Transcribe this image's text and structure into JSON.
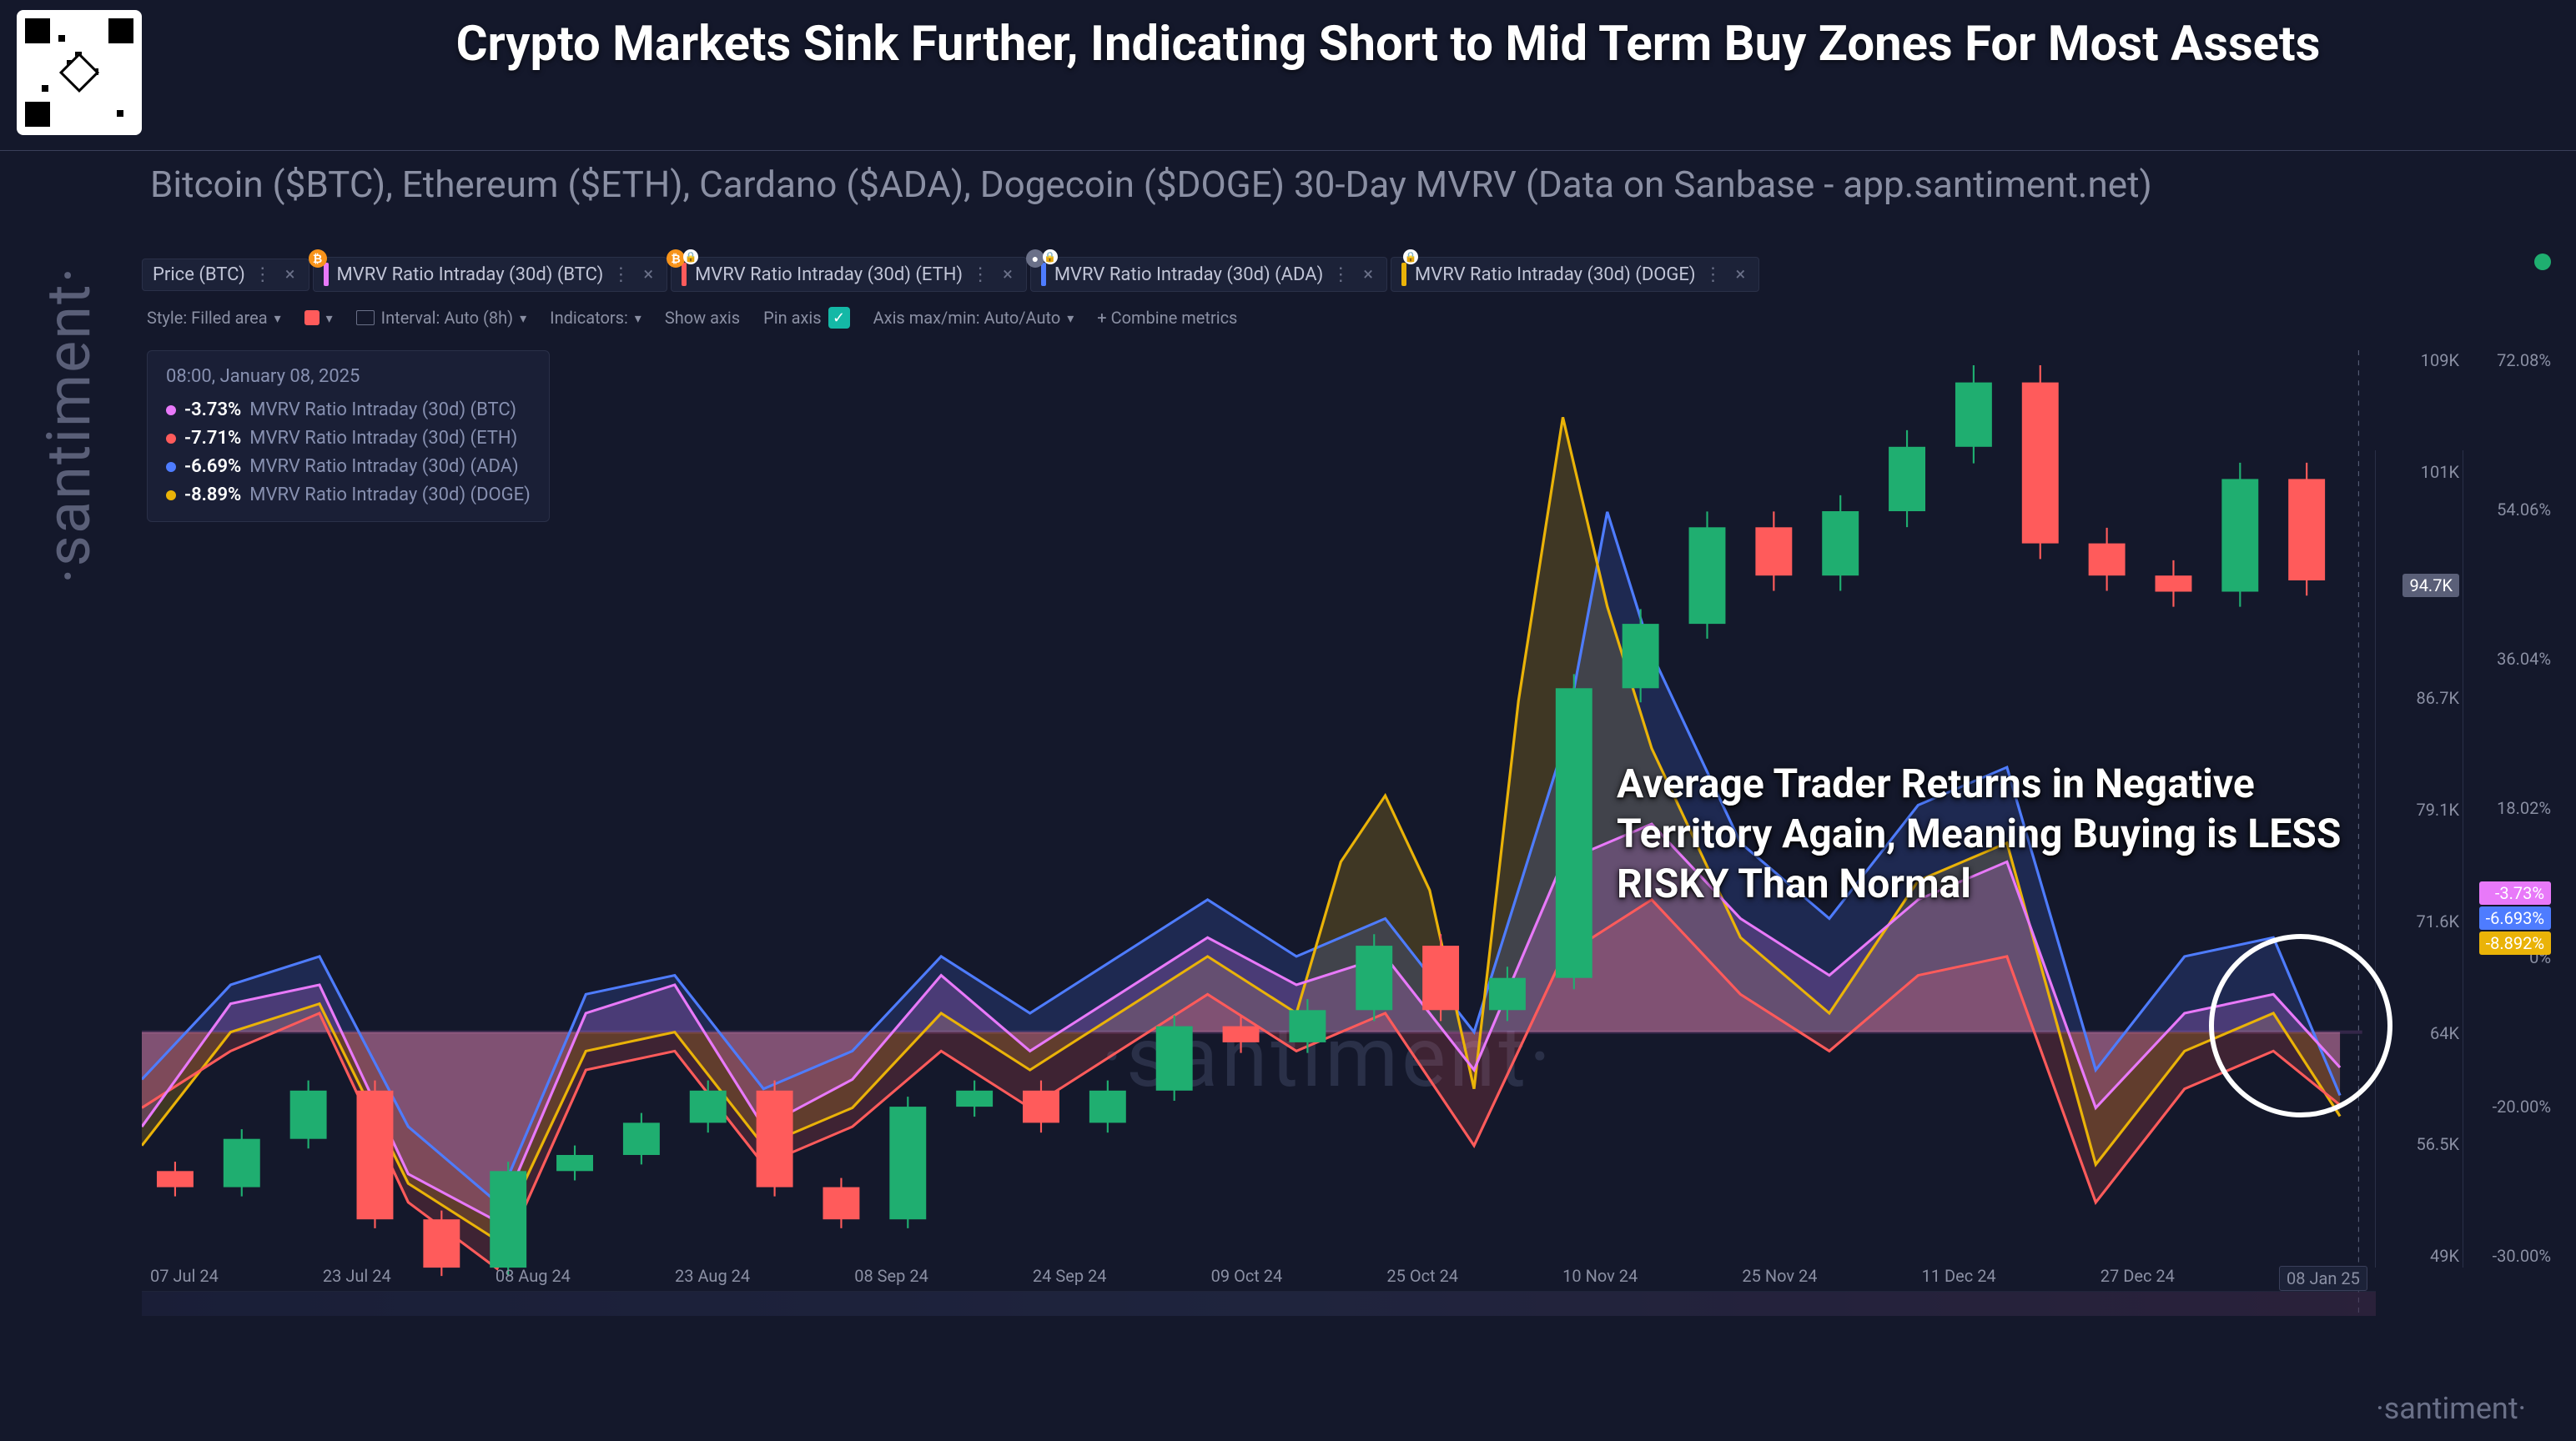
{
  "headline": "Crypto Markets Sink Further, Indicating Short to Mid Term Buy Zones For Most Assets",
  "subtitle": "Bitcoin ($BTC), Ethereum ($ETH), Cardano ($ADA), Dogecoin ($DOGE) 30-Day MVRV (Data on Sanbase - app.santiment.net)",
  "watermark": "·santiment·",
  "pills": [
    {
      "label": "Price (BTC)",
      "color": null,
      "badges": []
    },
    {
      "label": "MVRV Ratio Intraday (30d) (BTC)",
      "color": "#e879f9",
      "badges": [
        "btc"
      ]
    },
    {
      "label": "MVRV Ratio Intraday (30d) (ETH)",
      "color": "#ff5b5b",
      "badges": [
        "btc",
        "lock"
      ]
    },
    {
      "label": "MVRV Ratio Intraday (30d) (ADA)",
      "color": "#4e7cff",
      "badges": [
        "gray",
        "lock"
      ]
    },
    {
      "label": "MVRV Ratio Intraday (30d) (DOGE)",
      "color": "#eab308",
      "badges": [
        "lock"
      ]
    }
  ],
  "toolbar": {
    "style_label": "Style: Filled area",
    "interval_label": "Interval: Auto (8h)",
    "indicators_label": "Indicators:",
    "show_axis": "Show axis",
    "pin_axis": "Pin axis",
    "axis_minmax": "Axis max/min: Auto/Auto",
    "combine": "+   Combine metrics"
  },
  "tooltip": {
    "time": "08:00, January 08, 2025",
    "rows": [
      {
        "color": "#e879f9",
        "val": "-3.73%",
        "lbl": "MVRV Ratio Intraday (30d) (BTC)"
      },
      {
        "color": "#ff5b5b",
        "val": "-7.71%",
        "lbl": "MVRV Ratio Intraday (30d) (ETH)"
      },
      {
        "color": "#4e7cff",
        "val": "-6.69%",
        "lbl": "MVRV Ratio Intraday (30d) (ADA)"
      },
      {
        "color": "#eab308",
        "val": "-8.89%",
        "lbl": "MVRV Ratio Intraday (30d) (DOGE)"
      }
    ]
  },
  "annotation": "Average Trader Returns in Negative Territory Again, Meaning Buying is LESS RISKY Than Normal",
  "x_ticks": [
    "07 Jul 24",
    "23 Jul 24",
    "08 Aug 24",
    "23 Aug 24",
    "08 Sep 24",
    "24 Sep 24",
    "09 Oct 24",
    "25 Oct 24",
    "10 Nov 24",
    "25 Nov 24",
    "11 Dec 24",
    "27 Dec 24",
    "08 Jan 25"
  ],
  "y_left_ticks": [
    "109K",
    "101K",
    "94.7K",
    "86.7K",
    "79.1K",
    "71.6K",
    "64K",
    "56.5K",
    "49K"
  ],
  "y_left_highlight": "94.7K",
  "y_right_ticks": [
    "72.08%",
    "54.06%",
    "36.04%",
    "18.02%",
    "0%",
    "-20.00%",
    "-30.00%"
  ],
  "y_right_tags": [
    {
      "text": "-3.73%",
      "bg": "#e879f9"
    },
    {
      "text": "-6.693%",
      "bg": "#4e7cff"
    },
    {
      "text": "-8.892%",
      "bg": "#eab308"
    }
  ],
  "colors": {
    "bg": "#14182b",
    "panel": "#1c2238",
    "grid": "#2a3048",
    "btc": "#e879f9",
    "eth": "#ff5b5b",
    "ada": "#4e7cff",
    "doge": "#eab308",
    "candle_up": "#1fae70",
    "candle_dn": "#ff5b5b"
  },
  "chart": {
    "type": "multiline+candlestick",
    "x_range": [
      0,
      100
    ],
    "price_range": [
      49000,
      109000
    ],
    "pct_range": [
      -30,
      72.08
    ],
    "price": [
      [
        0,
        58000
      ],
      [
        3,
        57000
      ],
      [
        6,
        60000
      ],
      [
        9,
        63000
      ],
      [
        12,
        55000
      ],
      [
        15,
        52000
      ],
      [
        18,
        58000
      ],
      [
        21,
        59000
      ],
      [
        24,
        61000
      ],
      [
        27,
        63000
      ],
      [
        30,
        57000
      ],
      [
        33,
        55000
      ],
      [
        36,
        62000
      ],
      [
        39,
        63000
      ],
      [
        42,
        61000
      ],
      [
        45,
        63000
      ],
      [
        48,
        67000
      ],
      [
        51,
        66000
      ],
      [
        54,
        68000
      ],
      [
        57,
        72000
      ],
      [
        60,
        68000
      ],
      [
        63,
        70000
      ],
      [
        66,
        88000
      ],
      [
        69,
        92000
      ],
      [
        72,
        98000
      ],
      [
        75,
        95000
      ],
      [
        78,
        99000
      ],
      [
        81,
        103000
      ],
      [
        84,
        107000
      ],
      [
        87,
        97000
      ],
      [
        90,
        95000
      ],
      [
        93,
        94000
      ],
      [
        96,
        101000
      ],
      [
        99,
        94700
      ]
    ],
    "btc": [
      [
        0,
        -10
      ],
      [
        4,
        3
      ],
      [
        8,
        5
      ],
      [
        12,
        -15
      ],
      [
        16,
        -20
      ],
      [
        20,
        2
      ],
      [
        24,
        5
      ],
      [
        28,
        -10
      ],
      [
        32,
        -5
      ],
      [
        36,
        6
      ],
      [
        40,
        -2
      ],
      [
        44,
        4
      ],
      [
        48,
        10
      ],
      [
        52,
        5
      ],
      [
        56,
        8
      ],
      [
        60,
        -4
      ],
      [
        64,
        18
      ],
      [
        68,
        22
      ],
      [
        72,
        12
      ],
      [
        76,
        6
      ],
      [
        80,
        14
      ],
      [
        84,
        18
      ],
      [
        88,
        -8
      ],
      [
        92,
        2
      ],
      [
        96,
        4
      ],
      [
        99,
        -3.73
      ]
    ],
    "eth": [
      [
        0,
        -8
      ],
      [
        4,
        -2
      ],
      [
        8,
        2
      ],
      [
        12,
        -18
      ],
      [
        16,
        -25
      ],
      [
        20,
        -4
      ],
      [
        24,
        -2
      ],
      [
        28,
        -14
      ],
      [
        32,
        -10
      ],
      [
        36,
        -2
      ],
      [
        40,
        -8
      ],
      [
        44,
        -2
      ],
      [
        48,
        4
      ],
      [
        52,
        -2
      ],
      [
        56,
        2
      ],
      [
        60,
        -12
      ],
      [
        64,
        8
      ],
      [
        68,
        14
      ],
      [
        72,
        4
      ],
      [
        76,
        -2
      ],
      [
        80,
        6
      ],
      [
        84,
        8
      ],
      [
        88,
        -18
      ],
      [
        92,
        -6
      ],
      [
        96,
        -2
      ],
      [
        99,
        -7.71
      ]
    ],
    "ada": [
      [
        0,
        -5
      ],
      [
        4,
        5
      ],
      [
        8,
        8
      ],
      [
        12,
        -10
      ],
      [
        16,
        -18
      ],
      [
        20,
        4
      ],
      [
        24,
        6
      ],
      [
        28,
        -6
      ],
      [
        32,
        -2
      ],
      [
        36,
        8
      ],
      [
        40,
        2
      ],
      [
        44,
        8
      ],
      [
        48,
        14
      ],
      [
        52,
        8
      ],
      [
        56,
        12
      ],
      [
        60,
        0
      ],
      [
        64,
        30
      ],
      [
        66,
        55
      ],
      [
        68,
        40
      ],
      [
        72,
        20
      ],
      [
        76,
        12
      ],
      [
        80,
        24
      ],
      [
        84,
        28
      ],
      [
        88,
        -4
      ],
      [
        92,
        8
      ],
      [
        96,
        10
      ],
      [
        99,
        -6.69
      ]
    ],
    "doge": [
      [
        0,
        -12
      ],
      [
        4,
        0
      ],
      [
        8,
        3
      ],
      [
        12,
        -16
      ],
      [
        16,
        -22
      ],
      [
        20,
        -2
      ],
      [
        24,
        0
      ],
      [
        28,
        -12
      ],
      [
        32,
        -8
      ],
      [
        36,
        2
      ],
      [
        40,
        -4
      ],
      [
        44,
        2
      ],
      [
        48,
        8
      ],
      [
        52,
        2
      ],
      [
        54,
        18
      ],
      [
        56,
        25
      ],
      [
        58,
        15
      ],
      [
        60,
        -6
      ],
      [
        62,
        35
      ],
      [
        64,
        65
      ],
      [
        66,
        45
      ],
      [
        68,
        30
      ],
      [
        72,
        10
      ],
      [
        76,
        2
      ],
      [
        80,
        16
      ],
      [
        84,
        20
      ],
      [
        88,
        -14
      ],
      [
        92,
        -2
      ],
      [
        96,
        2
      ],
      [
        99,
        -8.89
      ]
    ]
  }
}
